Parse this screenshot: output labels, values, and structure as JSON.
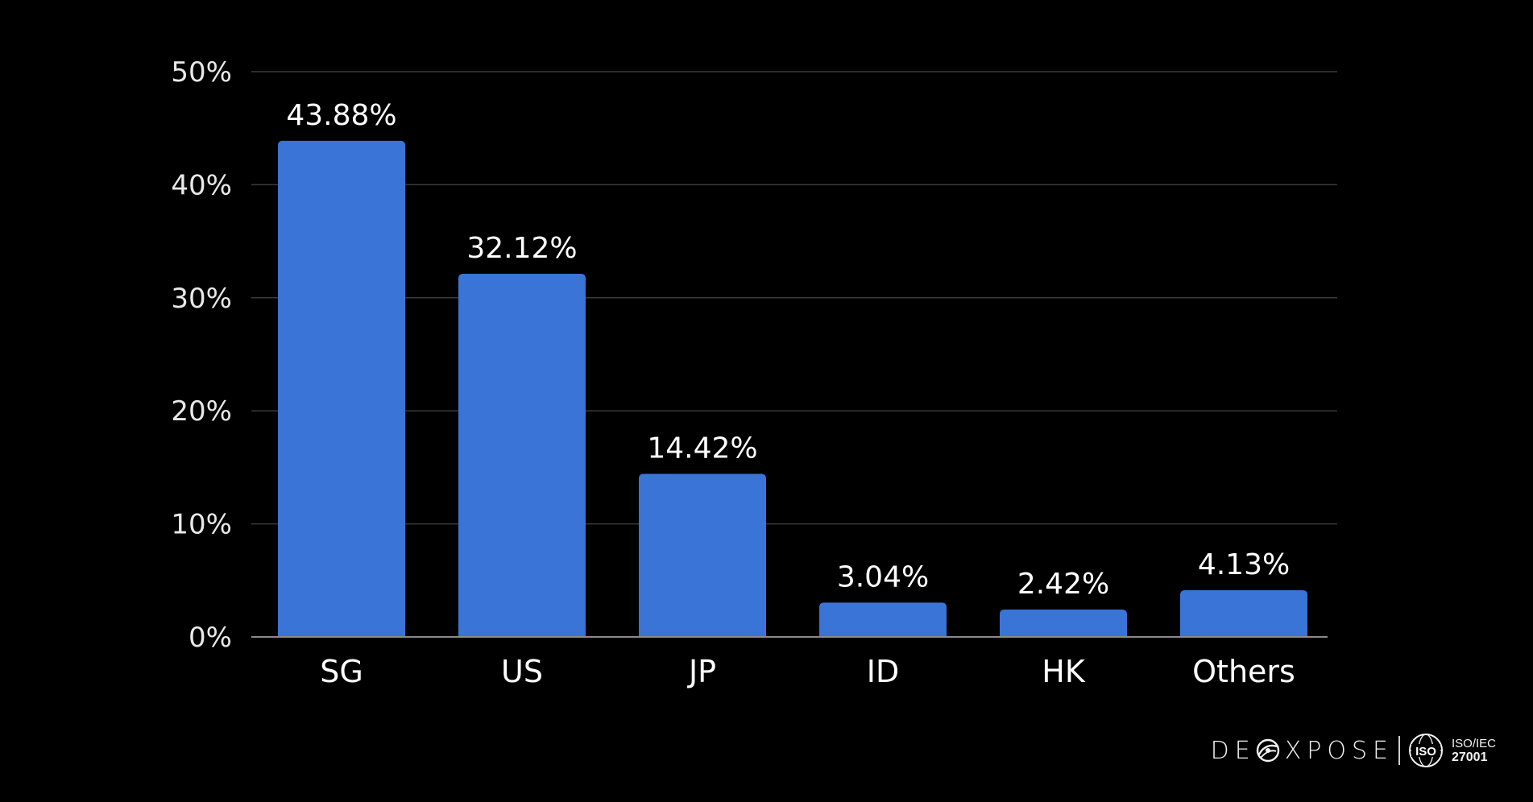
{
  "chart_data": {
    "type": "bar",
    "categories": [
      "SG",
      "US",
      "JP",
      "ID",
      "HK",
      "Others"
    ],
    "values": [
      43.88,
      32.12,
      14.42,
      3.04,
      2.42,
      4.13
    ],
    "data_labels": [
      "43.88%",
      "32.12%",
      "14.42%",
      "3.04%",
      "2.42%",
      "4.13%"
    ],
    "ylim": [
      0,
      50
    ],
    "yticks": [
      0,
      10,
      20,
      30,
      40,
      50
    ],
    "ytick_labels": [
      "0%",
      "10%",
      "20%",
      "30%",
      "40%",
      "50%"
    ],
    "grid": true,
    "bar_color": "#3a74d6",
    "title": "",
    "xlabel": "",
    "ylabel": ""
  },
  "branding": {
    "logo_left": "DE",
    "logo_right": "XPOSE",
    "iso_mark": "ISO",
    "iso_line1": "ISO/IEC",
    "iso_line2": "27001"
  },
  "colors": {
    "background": "#000000",
    "bar": "#3a74d6",
    "text": "#ffffff",
    "grid": "#3a3a3a"
  }
}
